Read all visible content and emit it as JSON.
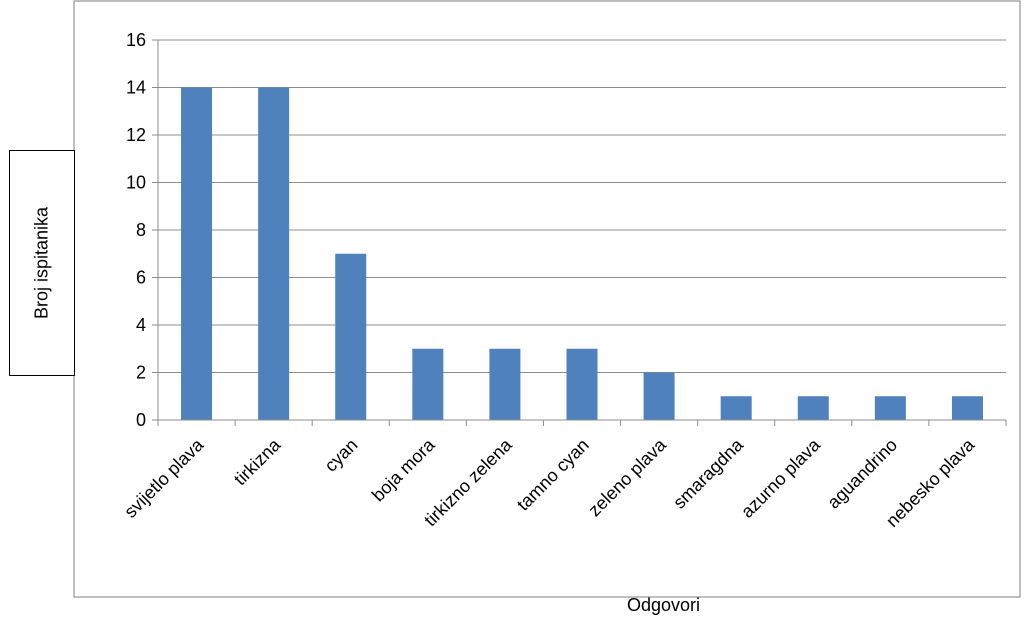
{
  "chart_data": {
    "type": "bar",
    "categories": [
      "svijetlo plava",
      "tirkizna",
      "cyan",
      "boja mora",
      "tirkizno zelena",
      "tamno cyan",
      "zeleno plava",
      "smaragdna",
      "azurno plava",
      "aguandrino",
      "nebesko plava"
    ],
    "values": [
      14,
      14,
      7,
      3,
      3,
      3,
      2,
      1,
      1,
      1,
      1
    ],
    "xlabel": "Odgovori",
    "ylabel": "Broj ispitanika",
    "ylim": [
      0,
      16
    ],
    "yticks": [
      0,
      2,
      4,
      6,
      8,
      10,
      12,
      14,
      16
    ],
    "grid": true,
    "legend": "none",
    "colors": {
      "bar": "#4f81bd",
      "grid": "#8c8c8c",
      "axis": "#8c8c8c",
      "text": "#000000"
    }
  }
}
